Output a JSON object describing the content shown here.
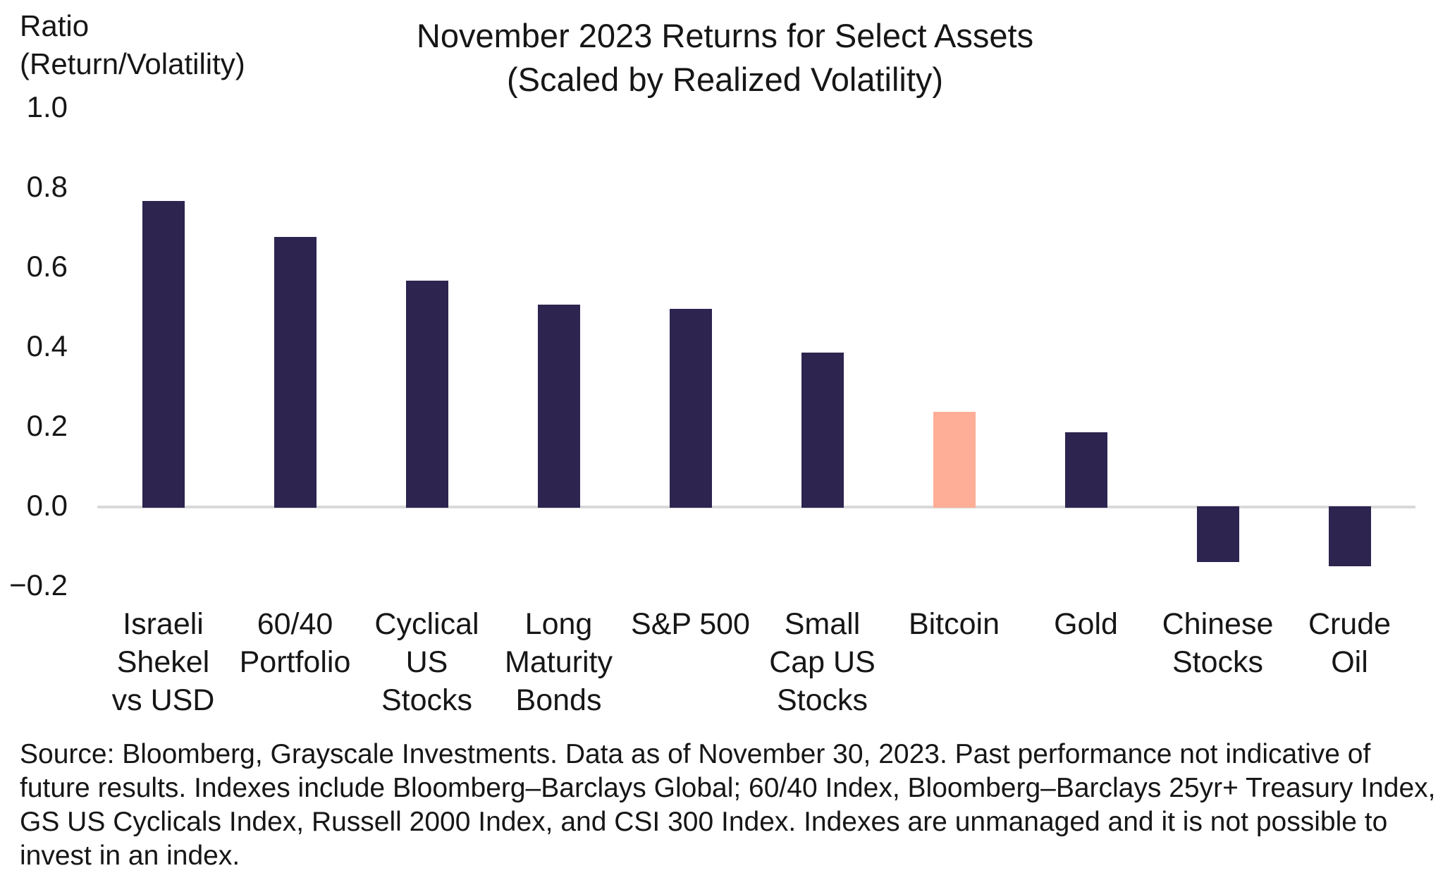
{
  "axis_header": {
    "line1": "Ratio",
    "line2": "(Return/Volatility)"
  },
  "title": {
    "line1": "November 2023 Returns for Select Assets",
    "line2": "(Scaled by Realized Volatility)"
  },
  "source_text": "Source: Bloomberg, Grayscale Investments. Data as of November 30, 2023. Past performance not indicative of future results. Indexes include Bloomberg–Barclays Global; 60/40 Index, Bloomberg–Barclays 25yr+ Treasury Index, GS US Cyclicals Index, Russell 2000 Index, and CSI 300 Index. Indexes are unmanaged and it is not possible to invest in an index.",
  "colors": {
    "bar": "#2D2450",
    "highlight": "#FEAE96",
    "zero_line": "#D9D9D9",
    "text": "#161616",
    "background": "#FFFFFF"
  },
  "chart_data": {
    "type": "bar",
    "title": "November 2023 Returns for Select Assets (Scaled by Realized Volatility)",
    "xlabel": "",
    "ylabel": "Ratio (Return/Volatility)",
    "ylim": [
      -0.2,
      1.0
    ],
    "yticks": [
      1.0,
      0.8,
      0.6,
      0.4,
      0.2,
      0.0,
      -0.2
    ],
    "ytick_labels": [
      "1.0",
      "0.8",
      "0.6",
      "0.4",
      "0.2",
      "0.0",
      "−0.2"
    ],
    "grid": false,
    "legend": null,
    "categories": [
      "Israeli Shekel vs USD",
      "60/40 Portfolio",
      "Cyclical US Stocks",
      "Long Maturity Bonds",
      "S&P 500",
      "Small Cap US Stocks",
      "Bitcoin",
      "Gold",
      "Chinese Stocks",
      "Crude Oil"
    ],
    "category_lines": [
      [
        "Israeli",
        "Shekel",
        "vs USD"
      ],
      [
        "60/40",
        "Portfolio"
      ],
      [
        "Cyclical",
        "US",
        "Stocks"
      ],
      [
        "Long",
        "Maturity",
        "Bonds"
      ],
      [
        "S&P 500"
      ],
      [
        "Small",
        "Cap US",
        "Stocks"
      ],
      [
        "Bitcoin"
      ],
      [
        "Gold"
      ],
      [
        "Chinese",
        "Stocks"
      ],
      [
        "Crude",
        "Oil"
      ]
    ],
    "values": [
      0.77,
      0.68,
      0.57,
      0.51,
      0.5,
      0.39,
      0.24,
      0.19,
      -0.14,
      -0.15
    ],
    "highlight_index": 6,
    "highlight_category": "Bitcoin"
  }
}
